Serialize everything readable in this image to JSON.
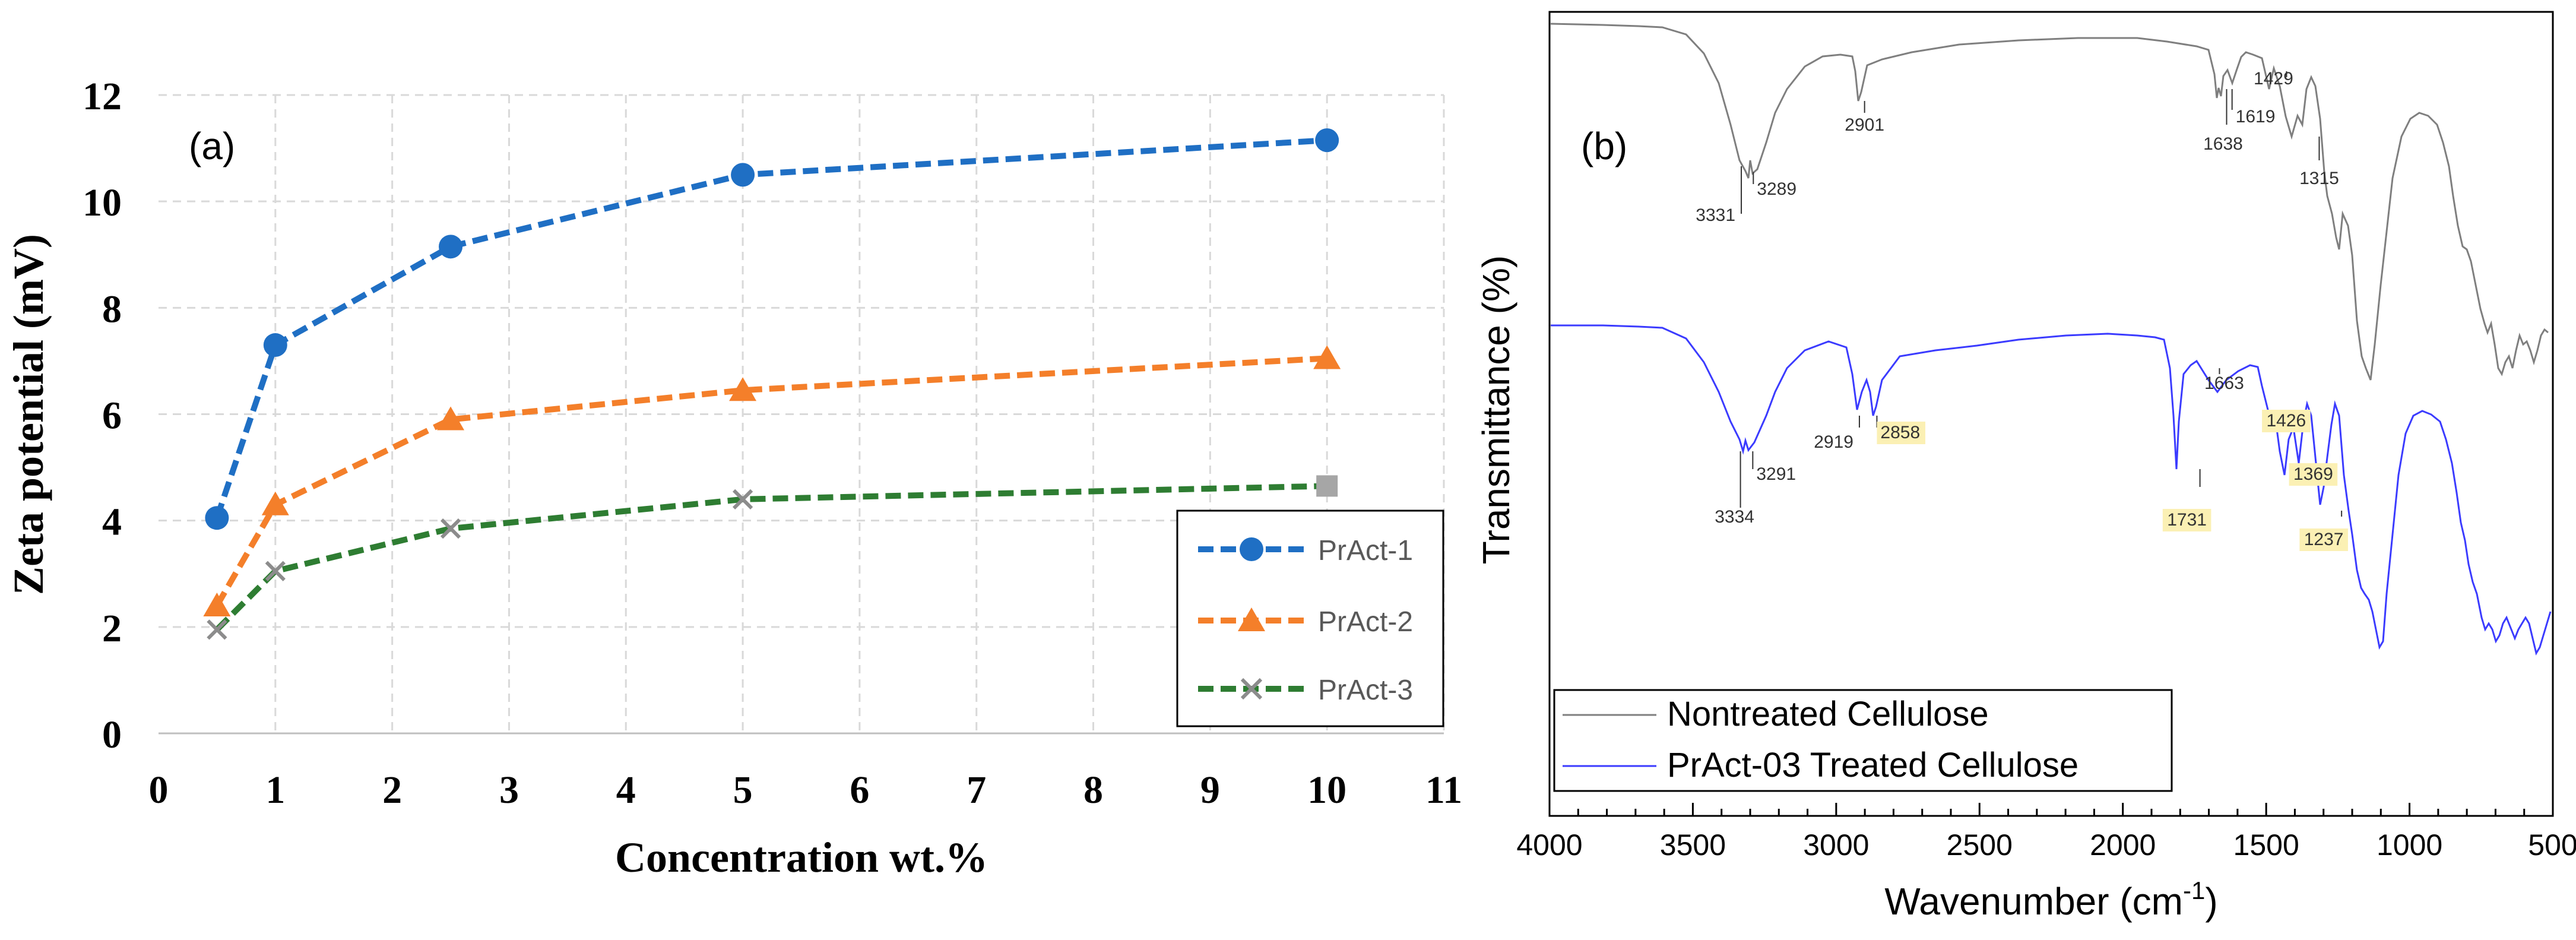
{
  "chart_data": [
    {
      "type": "line",
      "panel_label": "(a)",
      "title": "",
      "xlabel": "Concentration wt.%",
      "ylabel": "Zeta potential (mV)",
      "xlim": [
        0,
        11
      ],
      "ylim": [
        0,
        12
      ],
      "xticks": [
        "0",
        "1",
        "2",
        "3",
        "4",
        "5",
        "6",
        "7",
        "8",
        "9",
        "10",
        "11"
      ],
      "yticks": [
        "0",
        "2",
        "4",
        "6",
        "8",
        "10",
        "12"
      ],
      "grid": true,
      "legend_position": "bottom-right",
      "x": [
        0.5,
        1,
        2.5,
        5,
        10
      ],
      "series": [
        {
          "name": "PrAct-1",
          "values": [
            4.05,
            7.3,
            9.15,
            10.5,
            11.15
          ],
          "color": "#1f6fc4",
          "marker": "circle"
        },
        {
          "name": "PrAct-2",
          "values": [
            2.4,
            4.3,
            5.9,
            6.45,
            7.05
          ],
          "color": "#f47f2a",
          "marker": "triangle"
        },
        {
          "name": "PrAct-3",
          "values": [
            1.95,
            3.05,
            3.85,
            4.4,
            4.65
          ],
          "color": "#2e7d32",
          "marker": "x",
          "last_marker_color": "#a6a6a6"
        }
      ]
    },
    {
      "type": "line",
      "panel_label": "(b)",
      "title": "",
      "xlabel": "Wavenumber (cm",
      "xlabel_sup": "-1",
      "xlabel_end": ")",
      "ylabel": "Transmittance (%)",
      "xlim": [
        4000,
        500
      ],
      "xticks": [
        "4000",
        "3500",
        "3000",
        "2500",
        "2000",
        "1500",
        "1000",
        "500"
      ],
      "grid": false,
      "legend_position": "bottom-left",
      "series": [
        {
          "name": "Nontreated Cellulose",
          "color": "#7f7f7f",
          "peaks": [
            {
              "label": "3331",
              "x": 3331
            },
            {
              "label": "3289",
              "x": 3289
            },
            {
              "label": "2901",
              "x": 2901
            },
            {
              "label": "1638",
              "x": 1638
            },
            {
              "label": "1619",
              "x": 1619
            },
            {
              "label": "1429",
              "x": 1429
            },
            {
              "label": "1315",
              "x": 1315
            }
          ]
        },
        {
          "name": "PrAct-03 Treated Cellulose",
          "color": "#3b3bff",
          "peaks": [
            {
              "label": "3334",
              "x": 3334
            },
            {
              "label": "3291",
              "x": 3291
            },
            {
              "label": "2919",
              "x": 2919
            },
            {
              "label": "2858",
              "x": 2858,
              "highlight": true
            },
            {
              "label": "1731",
              "x": 1731,
              "highlight": true
            },
            {
              "label": "1663",
              "x": 1663
            },
            {
              "label": "1426",
              "x": 1426,
              "highlight": true
            },
            {
              "label": "1369",
              "x": 1369,
              "highlight": true
            },
            {
              "label": "1237",
              "x": 1237,
              "highlight": true
            }
          ]
        }
      ],
      "highlight_color": "#fbf0b4"
    }
  ]
}
